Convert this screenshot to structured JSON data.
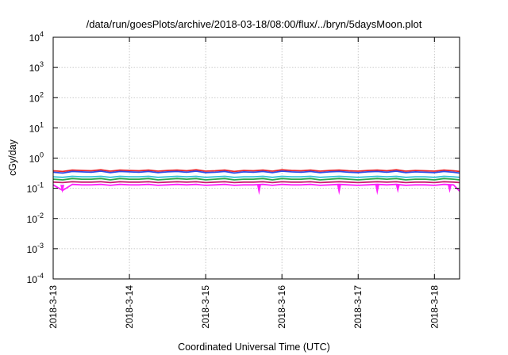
{
  "chart_data": {
    "type": "line",
    "title": "/data/run/goesPlots/archive/2018-03-18/08:00/flux/../bryn/5daysMoon.plot",
    "xlabel": "Coordinated Universal Time (UTC)",
    "ylabel": "cGy/day",
    "yscale": "log",
    "ylim": [
      0.0001,
      10000
    ],
    "xlim": [
      0,
      5.33
    ],
    "grid": true,
    "x_tick_labels": [
      "2018-3-13",
      "2018-3-14",
      "2018-3-15",
      "2018-3-16",
      "2018-3-17",
      "2018-3-18"
    ],
    "x_tick_positions": [
      0,
      1,
      2,
      3,
      4,
      5
    ],
    "y_ticks": [
      {
        "value": 0.0001,
        "base": "10",
        "exp": "-4"
      },
      {
        "value": 0.001,
        "base": "10",
        "exp": "-3"
      },
      {
        "value": 0.01,
        "base": "10",
        "exp": "-2"
      },
      {
        "value": 0.1,
        "base": "10",
        "exp": "-1"
      },
      {
        "value": 1,
        "base": "10",
        "exp": "0"
      },
      {
        "value": 10,
        "base": "10",
        "exp": "1"
      },
      {
        "value": 100,
        "base": "10",
        "exp": "2"
      },
      {
        "value": 1000,
        "base": "10",
        "exp": "3"
      },
      {
        "value": 10000,
        "base": "10",
        "exp": "4"
      }
    ],
    "x": [
      0.0,
      0.125,
      0.25,
      0.375,
      0.5,
      0.625,
      0.75,
      0.875,
      1.0,
      1.125,
      1.25,
      1.375,
      1.5,
      1.625,
      1.75,
      1.875,
      2.0,
      2.125,
      2.25,
      2.375,
      2.5,
      2.625,
      2.75,
      2.875,
      3.0,
      3.125,
      3.25,
      3.375,
      3.5,
      3.625,
      3.75,
      3.875,
      4.0,
      4.125,
      4.25,
      4.375,
      4.5,
      4.625,
      4.75,
      4.875,
      5.0,
      5.125,
      5.25,
      5.33
    ],
    "series": [
      {
        "color": "#e8232a",
        "values": [
          0.38,
          0.36,
          0.4,
          0.39,
          0.38,
          0.41,
          0.37,
          0.4,
          0.39,
          0.38,
          0.4,
          0.37,
          0.39,
          0.4,
          0.38,
          0.41,
          0.37,
          0.38,
          0.4,
          0.36,
          0.39,
          0.38,
          0.4,
          0.37,
          0.41,
          0.39,
          0.38,
          0.4,
          0.37,
          0.39,
          0.4,
          0.38,
          0.37,
          0.39,
          0.4,
          0.38,
          0.41,
          0.37,
          0.39,
          0.38,
          0.37,
          0.4,
          0.38,
          0.36
        ]
      },
      {
        "color": "#2e4de8",
        "values": [
          0.34,
          0.32,
          0.36,
          0.35,
          0.34,
          0.37,
          0.33,
          0.36,
          0.35,
          0.34,
          0.36,
          0.33,
          0.35,
          0.36,
          0.34,
          0.37,
          0.33,
          0.34,
          0.36,
          0.32,
          0.35,
          0.34,
          0.36,
          0.33,
          0.37,
          0.35,
          0.34,
          0.36,
          0.33,
          0.35,
          0.36,
          0.34,
          0.33,
          0.35,
          0.36,
          0.34,
          0.37,
          0.33,
          0.35,
          0.34,
          0.33,
          0.36,
          0.34,
          0.32
        ]
      },
      {
        "color": "#35c0d8",
        "values": [
          0.24,
          0.23,
          0.25,
          0.24,
          0.24,
          0.25,
          0.23,
          0.25,
          0.24,
          0.24,
          0.25,
          0.23,
          0.24,
          0.25,
          0.24,
          0.25,
          0.23,
          0.24,
          0.25,
          0.23,
          0.24,
          0.24,
          0.25,
          0.23,
          0.25,
          0.24,
          0.24,
          0.25,
          0.23,
          0.24,
          0.25,
          0.24,
          0.23,
          0.24,
          0.25,
          0.24,
          0.25,
          0.23,
          0.24,
          0.24,
          0.23,
          0.25,
          0.24,
          0.23
        ]
      },
      {
        "color": "#2aa84a",
        "values": [
          0.2,
          0.19,
          0.21,
          0.2,
          0.2,
          0.21,
          0.19,
          0.21,
          0.2,
          0.2,
          0.21,
          0.19,
          0.2,
          0.21,
          0.2,
          0.21,
          0.19,
          0.2,
          0.21,
          0.19,
          0.2,
          0.2,
          0.21,
          0.19,
          0.21,
          0.2,
          0.2,
          0.21,
          0.19,
          0.2,
          0.21,
          0.2,
          0.19,
          0.2,
          0.21,
          0.2,
          0.21,
          0.19,
          0.2,
          0.2,
          0.19,
          0.21,
          0.2,
          0.19
        ]
      },
      {
        "color": "#c81e6e",
        "values": [
          0.16,
          0.155,
          0.165,
          0.16,
          0.16,
          0.165,
          0.155,
          0.165,
          0.16,
          0.16,
          0.165,
          0.155,
          0.16,
          0.165,
          0.16,
          0.165,
          0.155,
          0.16,
          0.165,
          0.155,
          0.16,
          0.16,
          0.165,
          0.155,
          0.165,
          0.16,
          0.16,
          0.165,
          0.155,
          0.16,
          0.165,
          0.16,
          0.155,
          0.16,
          0.165,
          0.16,
          0.165,
          0.155,
          0.16,
          0.16,
          0.155,
          0.165,
          0.16,
          0.155
        ]
      },
      {
        "color": "#ff20ff",
        "values": [
          0.13,
          0.085,
          0.135,
          0.13,
          0.13,
          0.135,
          0.125,
          0.135,
          0.13,
          0.13,
          0.135,
          0.125,
          0.13,
          0.135,
          0.13,
          0.135,
          0.125,
          0.13,
          0.135,
          0.125,
          0.13,
          0.13,
          0.135,
          0.125,
          0.135,
          0.13,
          0.13,
          0.135,
          0.125,
          0.13,
          0.135,
          0.13,
          0.125,
          0.13,
          0.135,
          0.13,
          0.135,
          0.125,
          0.13,
          0.13,
          0.125,
          0.135,
          0.13,
          0.08
        ]
      }
    ],
    "dips": [
      {
        "x": 0.12,
        "value": 0.07
      },
      {
        "x": 2.7,
        "value": 0.06
      },
      {
        "x": 3.75,
        "value": 0.06
      },
      {
        "x": 4.25,
        "value": 0.06
      },
      {
        "x": 4.52,
        "value": 0.07
      },
      {
        "x": 5.2,
        "value": 0.07
      }
    ]
  }
}
